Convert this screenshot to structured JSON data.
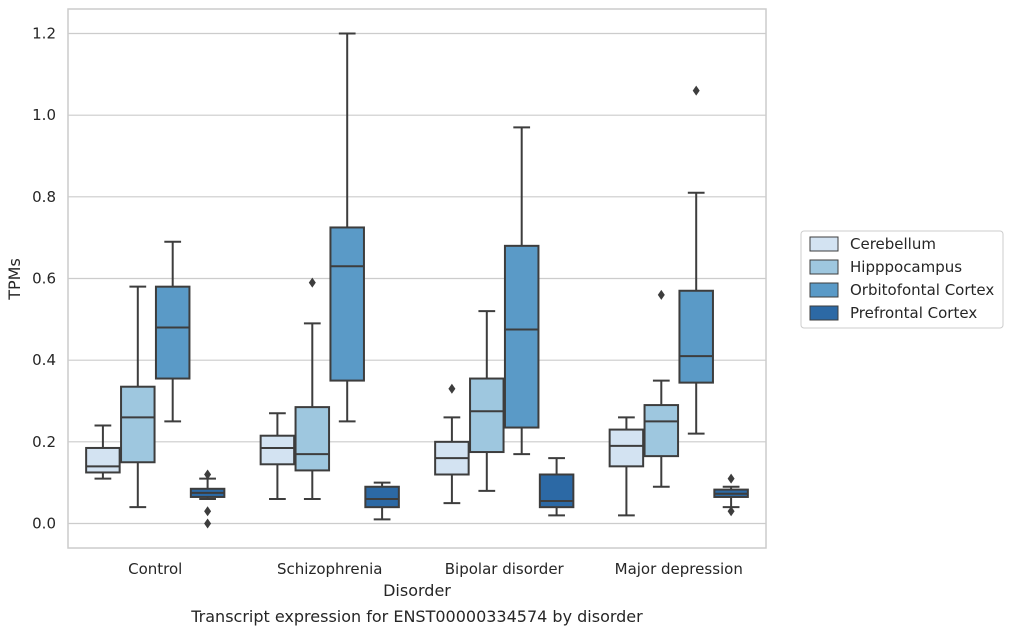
{
  "caption": "Transcript expression for ENST00000334574 by disorder",
  "chart_data": {
    "type": "box",
    "xlabel": "Disorder",
    "ylabel": "TPMs",
    "ylim": [
      -0.06,
      1.26
    ],
    "yticks": [
      "0.0",
      "0.2",
      "0.4",
      "0.6",
      "0.8",
      "1.0",
      "1.2"
    ],
    "grid": true,
    "legend_position": "right",
    "categories": [
      "Control",
      "Schizophrenia",
      "Bipolar disorder",
      "Major depression"
    ],
    "series": [
      {
        "name": "Cerebellum",
        "color": "#d3e3f2",
        "boxes": [
          {
            "whislo": 0.11,
            "q1": 0.125,
            "med": 0.14,
            "q3": 0.185,
            "whishi": 0.24,
            "fliers": []
          },
          {
            "whislo": 0.06,
            "q1": 0.145,
            "med": 0.185,
            "q3": 0.215,
            "whishi": 0.27,
            "fliers": []
          },
          {
            "whislo": 0.05,
            "q1": 0.12,
            "med": 0.16,
            "q3": 0.2,
            "whishi": 0.26,
            "fliers": [
              0.33
            ]
          },
          {
            "whislo": 0.02,
            "q1": 0.14,
            "med": 0.19,
            "q3": 0.23,
            "whishi": 0.26,
            "fliers": []
          }
        ]
      },
      {
        "name": "Hipppocampus",
        "color": "#9ec7df",
        "boxes": [
          {
            "whislo": 0.04,
            "q1": 0.15,
            "med": 0.26,
            "q3": 0.335,
            "whishi": 0.58,
            "fliers": []
          },
          {
            "whislo": 0.06,
            "q1": 0.13,
            "med": 0.17,
            "q3": 0.285,
            "whishi": 0.49,
            "fliers": [
              0.59
            ]
          },
          {
            "whislo": 0.08,
            "q1": 0.175,
            "med": 0.275,
            "q3": 0.355,
            "whishi": 0.52,
            "fliers": []
          },
          {
            "whislo": 0.09,
            "q1": 0.165,
            "med": 0.25,
            "q3": 0.29,
            "whishi": 0.35,
            "fliers": [
              0.56
            ]
          }
        ]
      },
      {
        "name": "Orbitofontal Cortex",
        "color": "#5a9ac7",
        "boxes": [
          {
            "whislo": 0.25,
            "q1": 0.355,
            "med": 0.48,
            "q3": 0.58,
            "whishi": 0.69,
            "fliers": []
          },
          {
            "whislo": 0.25,
            "q1": 0.35,
            "med": 0.63,
            "q3": 0.725,
            "whishi": 1.2,
            "fliers": []
          },
          {
            "whislo": 0.17,
            "q1": 0.235,
            "med": 0.475,
            "q3": 0.68,
            "whishi": 0.97,
            "fliers": []
          },
          {
            "whislo": 0.22,
            "q1": 0.345,
            "med": 0.41,
            "q3": 0.57,
            "whishi": 0.81,
            "fliers": [
              1.06
            ]
          }
        ]
      },
      {
        "name": "Prefrontal Cortex",
        "color": "#2c69a5",
        "boxes": [
          {
            "whislo": 0.06,
            "q1": 0.065,
            "med": 0.075,
            "q3": 0.085,
            "whishi": 0.11,
            "fliers": [
              0.12,
              0.03,
              0.0
            ]
          },
          {
            "whislo": 0.01,
            "q1": 0.04,
            "med": 0.06,
            "q3": 0.09,
            "whishi": 0.1,
            "fliers": []
          },
          {
            "whislo": 0.02,
            "q1": 0.04,
            "med": 0.055,
            "q3": 0.12,
            "whishi": 0.16,
            "fliers": []
          },
          {
            "whislo": 0.04,
            "q1": 0.065,
            "med": 0.073,
            "q3": 0.083,
            "whishi": 0.09,
            "fliers": [
              0.11,
              0.03
            ]
          }
        ]
      }
    ]
  }
}
